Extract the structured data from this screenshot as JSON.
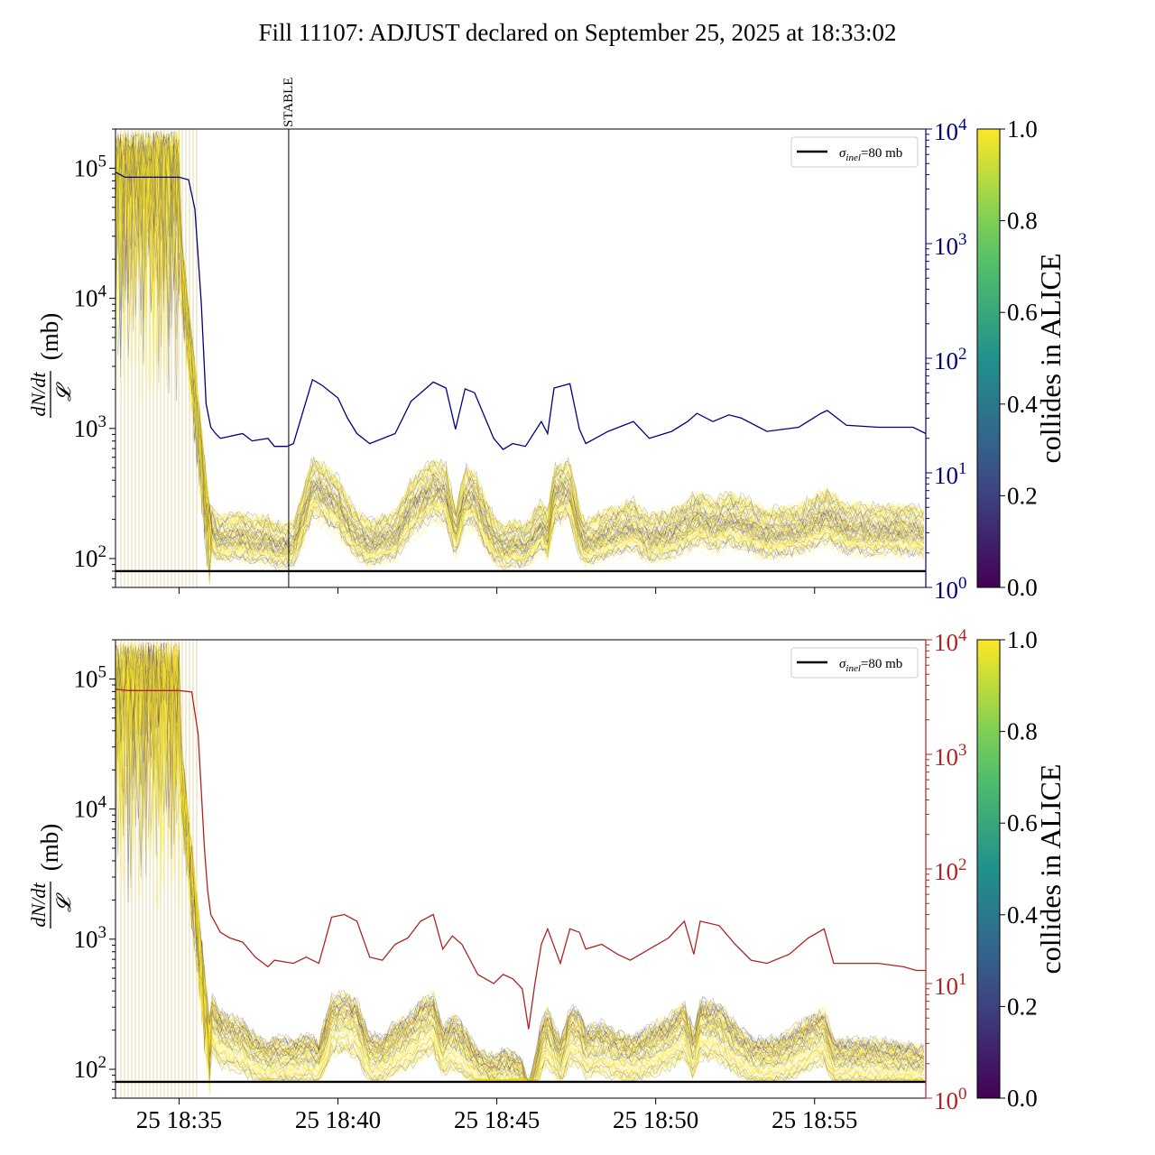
{
  "title": "Fill 11107: ADJUST declared on September 25, 2025 at 18:33:02",
  "chart_data": [
    {
      "type": "line",
      "panel": "top",
      "ylabel_num": "dN/dt",
      "ylabel_den": "𝓛",
      "ylabel_unit": "(mb)",
      "y_scale": "log",
      "ylim": [
        60,
        200000
      ],
      "y_ticks": [
        100,
        1000,
        10000,
        100000
      ],
      "y_ticklabels": [
        "10^2",
        "10^3",
        "10^4",
        "10^5"
      ],
      "y2_scale": "log",
      "y2lim": [
        1,
        10000
      ],
      "y2_ticks": [
        1,
        10,
        100,
        1000,
        10000
      ],
      "y2_ticklabels": [
        "10^0",
        "10^1",
        "10^2",
        "10^3",
        "10^4"
      ],
      "y2_color": "#000080",
      "x_ticklabels": [
        "25 18:35",
        "25 18:40",
        "25 18:45",
        "25 18:50",
        "25 18:55"
      ],
      "x_tick_minutes": [
        35,
        40,
        45,
        50,
        55
      ],
      "xlim_minutes": [
        33.0,
        58.5
      ],
      "vline": {
        "minute": 38.45,
        "label": "STABLE"
      },
      "hline": {
        "value": 80
      },
      "legend": {
        "symbol": "σ",
        "subscript": "inel",
        "text": "=80 mb",
        "placement": "top-right"
      },
      "colorbar": {
        "label": "collides in ALICE",
        "min": 0.0,
        "max": 1.0,
        "ticks": [
          "0.0",
          "0.2",
          "0.4",
          "0.6",
          "0.8",
          "1.0"
        ]
      },
      "y2_series": {
        "x_minutes": [
          33.0,
          33.3,
          34.0,
          34.6,
          35.0,
          35.3,
          35.5,
          35.7,
          35.85,
          36.0,
          36.15,
          36.3,
          37.0,
          37.3,
          37.8,
          38.0,
          38.4,
          38.6,
          39.2,
          39.5,
          40.0,
          40.3,
          40.6,
          41.0,
          41.8,
          42.3,
          43.0,
          43.4,
          43.7,
          44.0,
          44.3,
          44.9,
          45.2,
          45.5,
          45.9,
          46.4,
          46.6,
          46.8,
          47.3,
          47.6,
          47.8,
          48.5,
          49.3,
          49.8,
          50.5,
          51.0,
          51.3,
          51.8,
          52.3,
          52.7,
          53.5,
          54.5,
          55.2,
          55.4,
          56.0,
          57.0,
          57.8,
          58.1,
          58.5
        ],
        "values": [
          4200,
          3800,
          3800,
          3800,
          3800,
          3600,
          2000,
          300,
          40,
          25,
          22,
          20,
          22,
          19,
          20,
          17,
          17,
          18,
          65,
          58,
          45,
          30,
          22,
          18,
          22,
          42,
          62,
          55,
          24,
          54,
          50,
          20,
          16,
          18,
          17,
          28,
          22,
          55,
          60,
          24,
          18,
          23,
          28,
          20,
          23,
          28,
          33,
          28,
          32,
          30,
          23,
          25,
          33,
          35,
          26,
          25,
          25,
          25,
          22
        ]
      }
    },
    {
      "type": "line",
      "panel": "bottom",
      "ylabel_num": "dN/dt",
      "ylabel_den": "𝓛",
      "ylabel_unit": "(mb)",
      "y_scale": "log",
      "ylim": [
        60,
        200000
      ],
      "y_ticks": [
        100,
        1000,
        10000,
        100000
      ],
      "y_ticklabels": [
        "10^2",
        "10^3",
        "10^4",
        "10^5"
      ],
      "y2_scale": "log",
      "y2lim": [
        1,
        10000
      ],
      "y2_ticks": [
        1,
        10,
        100,
        1000,
        10000
      ],
      "y2_ticklabels": [
        "10^0",
        "10^1",
        "10^2",
        "10^3",
        "10^4"
      ],
      "y2_color": "#b22222",
      "x_ticklabels": [
        "25 18:35",
        "25 18:40",
        "25 18:45",
        "25 18:50",
        "25 18:55"
      ],
      "x_tick_minutes": [
        35,
        40,
        45,
        50,
        55
      ],
      "xlim_minutes": [
        33.0,
        58.5
      ],
      "hline": {
        "value": 80
      },
      "legend": {
        "symbol": "σ",
        "subscript": "inel",
        "text": "=80 mb",
        "placement": "top-right"
      },
      "colorbar": {
        "label": "collides in ALICE",
        "min": 0.0,
        "max": 1.0,
        "ticks": [
          "0.0",
          "0.2",
          "0.4",
          "0.6",
          "0.8",
          "1.0"
        ]
      },
      "y2_series": {
        "x_minutes": [
          33.0,
          33.4,
          34.0,
          34.6,
          35.0,
          35.4,
          35.6,
          35.8,
          35.9,
          36.0,
          36.3,
          36.6,
          37.0,
          37.4,
          37.8,
          38.0,
          38.6,
          39.0,
          39.4,
          39.8,
          40.2,
          40.6,
          41.0,
          41.4,
          41.8,
          42.2,
          42.6,
          43.0,
          43.3,
          43.6,
          43.9,
          44.4,
          44.9,
          45.2,
          45.5,
          45.8,
          46.0,
          46.2,
          46.4,
          46.6,
          47.0,
          47.3,
          47.6,
          47.8,
          48.3,
          48.8,
          49.2,
          49.8,
          50.4,
          50.9,
          51.2,
          51.4,
          52.0,
          52.5,
          53.0,
          53.5,
          54.2,
          54.8,
          55.3,
          55.6,
          56.2,
          57.0,
          57.8,
          58.2,
          58.5
        ],
        "values": [
          3700,
          3600,
          3600,
          3600,
          3600,
          3500,
          1500,
          150,
          65,
          40,
          28,
          25,
          23,
          17,
          14,
          16,
          15,
          17,
          15,
          38,
          40,
          35,
          17,
          16,
          22,
          25,
          35,
          40,
          20,
          26,
          22,
          12,
          10,
          12,
          11,
          9,
          4,
          10,
          22,
          30,
          15,
          30,
          28,
          20,
          22,
          18,
          16,
          20,
          25,
          35,
          18,
          35,
          32,
          22,
          16,
          15,
          18,
          25,
          30,
          15,
          15,
          15,
          14,
          13,
          13
        ]
      }
    }
  ]
}
